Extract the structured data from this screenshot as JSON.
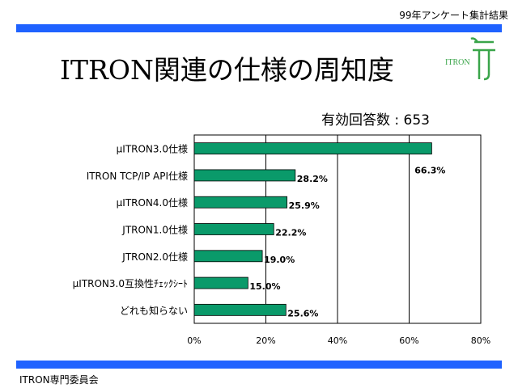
{
  "header": {
    "survey_label": "99年アンケート集計結果"
  },
  "title": "ITRON関連の仕様の周知度",
  "respondents": "有効回答数 : 653",
  "logo": {
    "text": "ITRON"
  },
  "footer": {
    "text": "ITRON専門委員会"
  },
  "colors": {
    "bar": "#0a9a6a",
    "band": "#1f62ff",
    "logo": "#3aa54a"
  },
  "chart_data": {
    "type": "bar",
    "orientation": "horizontal",
    "categories": [
      "μITRON3.0仕様",
      "ITRON TCP/IP API仕様",
      "μITRON4.0仕様",
      "JTRON1.0仕様",
      "JTRON2.0仕様",
      "μITRON3.0互換性ﾁｪｯｸｼｰﾄ",
      "どれも知らない"
    ],
    "values": [
      66.3,
      28.2,
      25.9,
      22.2,
      19.0,
      15.0,
      25.6
    ],
    "value_labels": [
      "66.3%",
      "28.2%",
      "25.9%",
      "22.2%",
      "19.0%",
      "15.0%",
      "25.6%"
    ],
    "xlim": [
      0,
      80
    ],
    "ticks": [
      0,
      20,
      40,
      60,
      80
    ],
    "tick_labels": [
      "0%",
      "20%",
      "40%",
      "60%",
      "80%"
    ],
    "grid": true
  }
}
